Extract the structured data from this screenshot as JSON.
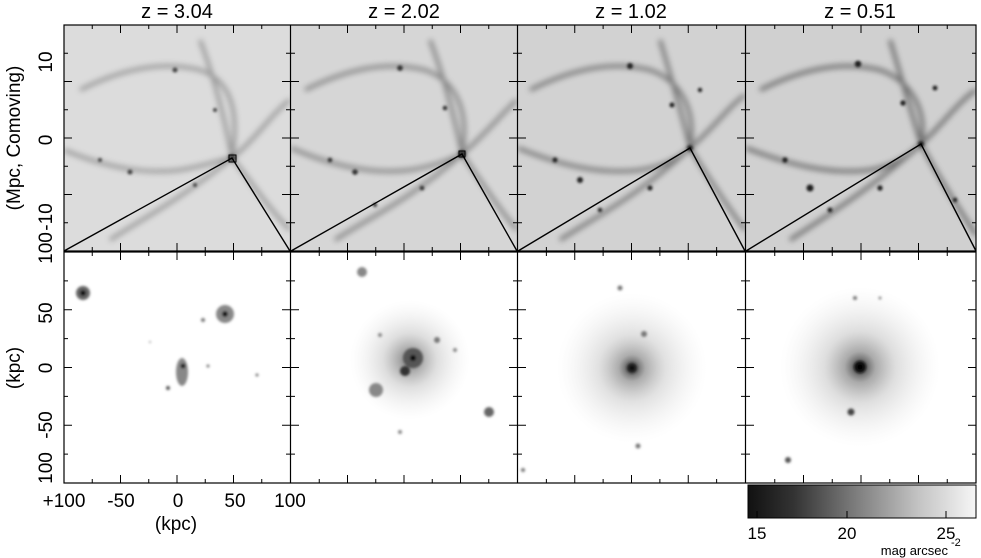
{
  "panel_titles": [
    "z = 3.04",
    "z = 2.02",
    "z = 1.02",
    "z = 0.51"
  ],
  "top_row": {
    "ylabel": "(Mpc, Comoving)",
    "ytick_labels": [
      "10",
      "0",
      "-10"
    ],
    "ytick_corner": "100"
  },
  "bottom_row": {
    "ylabel": "(kpc)",
    "ytick_labels": [
      "50",
      "0",
      "-50",
      "100"
    ],
    "xtick_labels": [
      "+100",
      "-50",
      "0",
      "50",
      "100"
    ],
    "xlabel": "(kpc)"
  },
  "colorbar": {
    "tick_labels": [
      "15",
      "20",
      "25"
    ],
    "range": [
      15,
      26.5
    ],
    "unit_label": "mag arcsec",
    "unit_exponent": "-2",
    "colors": {
      "bright": "#1a1a1a",
      "faint": "#f4f4f4"
    }
  }
}
